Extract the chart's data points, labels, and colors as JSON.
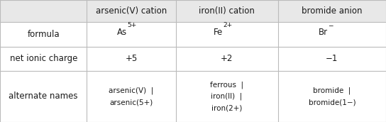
{
  "figsize": [
    5.44,
    1.72
  ],
  "dpi": 100,
  "background_color": "#ffffff",
  "header_bg": "#e8e8e8",
  "body_bg": "#ffffff",
  "col_headers": [
    "arsenic(V) cation",
    "iron(II) cation",
    "bromide anion"
  ],
  "row_labels": [
    "formula",
    "net ionic charge",
    "alternate names"
  ],
  "formula_bases": [
    "As",
    "Fe",
    "Br"
  ],
  "formula_sups": [
    "5+",
    "2+",
    "−"
  ],
  "charge_row": [
    "+5",
    "+2",
    "−1"
  ],
  "alt_names_row": [
    [
      "arsenic(V)  |",
      "arsenic(5+)"
    ],
    [
      "ferrous  |",
      "iron(II)  |",
      "iron(2+)"
    ],
    [
      "bromide  |",
      "bromide(1−)"
    ]
  ],
  "font_color": "#1a1a1a",
  "header_font_size": 8.5,
  "body_font_size": 8.5,
  "small_font_size": 7.5,
  "sup_font_size": 6.5,
  "line_color": "#bbbbbb",
  "line_width": 0.8,
  "col_bounds": [
    0.0,
    0.225,
    0.455,
    0.72,
    1.0
  ],
  "row_bounds": [
    1.0,
    0.82,
    0.615,
    0.42,
    0.0
  ]
}
